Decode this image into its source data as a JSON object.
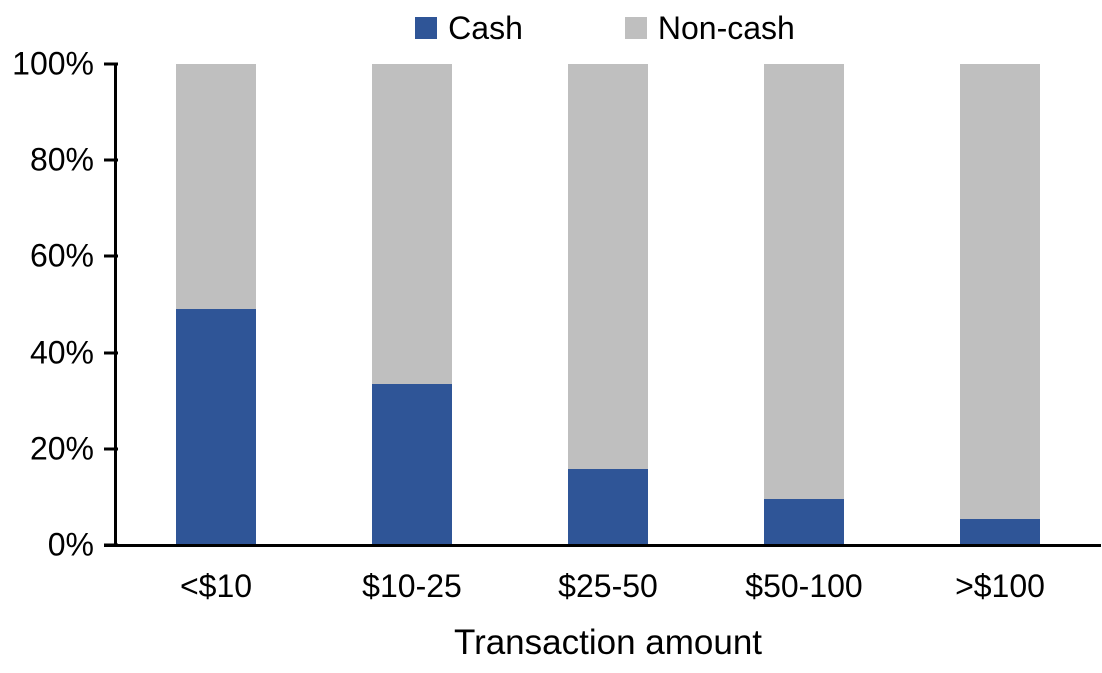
{
  "chart_data": {
    "type": "bar",
    "stacked": true,
    "title": "",
    "xlabel": "Transaction amount",
    "ylabel": "",
    "categories": [
      "<$10",
      "$10-25",
      "$25-50",
      "$50-100",
      ">$100"
    ],
    "series": [
      {
        "name": "Cash",
        "color": "#2F5597",
        "values": [
          49,
          33.5,
          15.7,
          9.5,
          5.5
        ]
      },
      {
        "name": "Non-cash",
        "color": "#BFBFBF",
        "values": [
          51,
          66.5,
          84.3,
          90.5,
          94.5
        ]
      }
    ],
    "ylim": [
      0,
      100
    ],
    "yticks": [
      {
        "label": "0%",
        "value": 0
      },
      {
        "label": "20%",
        "value": 20
      },
      {
        "label": "40%",
        "value": 40
      },
      {
        "label": "60%",
        "value": 60
      },
      {
        "label": "80%",
        "value": 80
      },
      {
        "label": "100%",
        "value": 100
      }
    ],
    "legend_position": "top",
    "grid": false,
    "colors": {
      "axis": "#000000",
      "text": "#000000",
      "background": "#FFFFFF"
    }
  }
}
